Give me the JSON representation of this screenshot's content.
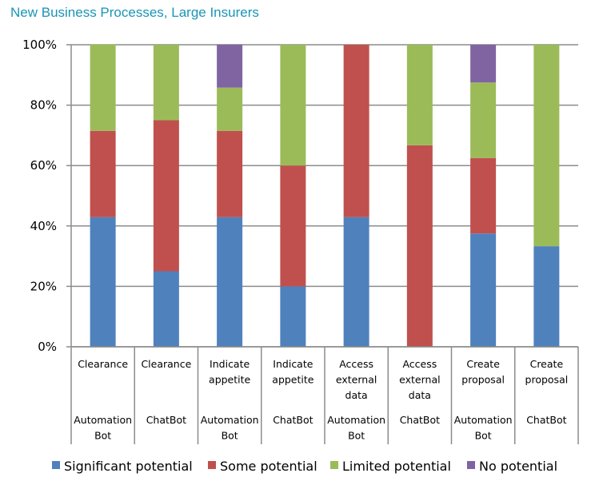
{
  "chart_data": {
    "type": "bar",
    "stacked": true,
    "percent": true,
    "title": "New Business Processes, Large Insurers",
    "xlabel": "",
    "ylabel": "",
    "ylim": [
      0,
      100
    ],
    "yticks": [
      "0%",
      "20%",
      "40%",
      "60%",
      "80%",
      "100%"
    ],
    "grid": true,
    "legend_position": "bottom",
    "categories": [
      {
        "process": [
          "Clearance"
        ],
        "type": [
          "Automation",
          "Bot"
        ]
      },
      {
        "process": [
          "Clearance"
        ],
        "type": [
          "ChatBot"
        ]
      },
      {
        "process": [
          "Indicate",
          "appetite"
        ],
        "type": [
          "Automation",
          "Bot"
        ]
      },
      {
        "process": [
          "Indicate",
          "appetite"
        ],
        "type": [
          "ChatBot"
        ]
      },
      {
        "process": [
          "Access",
          "external",
          "data"
        ],
        "type": [
          "Automation",
          "Bot"
        ]
      },
      {
        "process": [
          "Access",
          "external",
          "data"
        ],
        "type": [
          "ChatBot"
        ]
      },
      {
        "process": [
          "Create",
          "proposal"
        ],
        "type": [
          "Automation",
          "Bot"
        ]
      },
      {
        "process": [
          "Create",
          "proposal"
        ],
        "type": [
          "ChatBot"
        ]
      }
    ],
    "series": [
      {
        "name": "Significant potential",
        "color": "#4f81bd",
        "values": [
          42.9,
          25,
          42.9,
          20,
          42.9,
          0,
          37.5,
          33.3
        ]
      },
      {
        "name": "Some potential",
        "color": "#c0504d",
        "values": [
          28.6,
          50,
          28.6,
          40,
          57.1,
          66.7,
          25,
          0
        ]
      },
      {
        "name": "Limited potential",
        "color": "#9bbb59",
        "values": [
          28.6,
          25,
          14.3,
          40,
          0,
          33.3,
          25,
          66.7
        ]
      },
      {
        "name": "No potential",
        "color": "#8064a2",
        "values": [
          0,
          0,
          14.3,
          0,
          0,
          0,
          12.5,
          0
        ]
      }
    ]
  }
}
